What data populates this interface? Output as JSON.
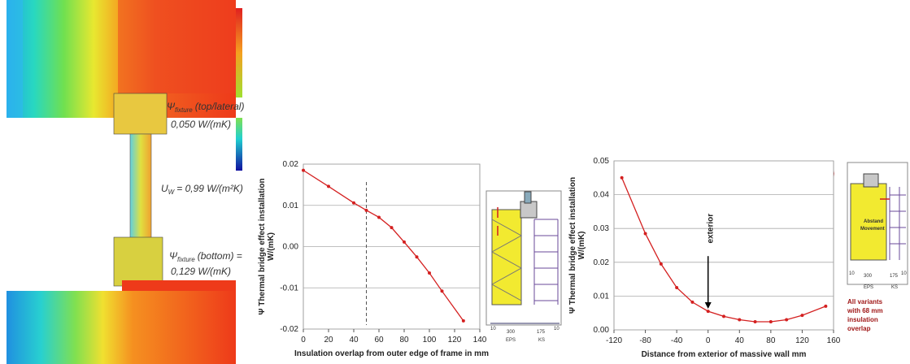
{
  "figure": {
    "left_annotations": {
      "psi_top": {
        "symbol": "Ψ",
        "subscript": "fixture",
        "text": "(top/lateral)"
      },
      "psi_top_value": "0,050 W/(mK)",
      "uw": {
        "symbol": "U",
        "subscript": "W",
        "text": "= 0,99 W/(m²K)"
      },
      "psi_bottom": {
        "symbol": "Ψ",
        "subscript": "fixture",
        "text": "(bottom) ="
      },
      "psi_bottom_value": "0,129  W/(mK)"
    },
    "inset_1": {
      "dims": [
        "10",
        "300",
        "175",
        "10"
      ],
      "materials": [
        "EPS",
        "KS"
      ]
    },
    "inset_2": {
      "labels": [
        "Abstand",
        "Movement"
      ],
      "dims": [
        "10",
        "300",
        "175",
        "10"
      ],
      "materials": [
        "EPS",
        "KS"
      ],
      "note": [
        "All variants",
        "with 68 mm",
        "insulation",
        "overlap"
      ]
    }
  },
  "chart_data": [
    {
      "type": "line",
      "ylabel": [
        "Ψ  Thermal bridge effect installation",
        "W/(mK)"
      ],
      "xlabel": "Insulation overlap from outer edge of frame in mm",
      "x": [
        0,
        20,
        40,
        50,
        60,
        70,
        80,
        90,
        100,
        110,
        127
      ],
      "series": [
        {
          "color": "#d42020",
          "values": [
            0.0185,
            0.0146,
            0.0106,
            0.0088,
            0.0071,
            0.0046,
            0.0011,
            -0.0025,
            -0.0064,
            -0.0108,
            -0.018
          ]
        }
      ],
      "reference_x": 50,
      "xlim": [
        0,
        140
      ],
      "xticks": [
        0,
        20,
        40,
        60,
        80,
        100,
        120,
        140
      ],
      "ylim": [
        -0.02,
        0.02
      ],
      "yticks": [
        -0.02,
        -0.01,
        {
          "value": 0,
          "label": "0.00"
        },
        0.01,
        0.02
      ],
      "grid": true
    },
    {
      "type": "line",
      "ylabel": [
        "Ψ  Thermal bridge effect installation",
        "W/(mK)"
      ],
      "xlabel": "Distance from exterior of massive wall mm",
      "x": [
        -110,
        -80,
        -60,
        -40,
        -20,
        0,
        20,
        40,
        60,
        80,
        100,
        120,
        150
      ],
      "series": [
        {
          "color": "#d42020",
          "values": [
            0.045,
            0.0285,
            0.0195,
            0.0125,
            0.0082,
            0.0055,
            0.004,
            0.003,
            0.0024,
            0.0024,
            0.003,
            0.0043,
            0.007
          ]
        }
      ],
      "annotations": [
        {
          "text": "exterior",
          "x": 0
        }
      ],
      "xlim": [
        -120,
        160
      ],
      "xticks": [
        -120,
        -80,
        -40,
        0,
        40,
        80,
        120,
        160
      ],
      "ylim": [
        0,
        0.05
      ],
      "yticks": [
        {
          "value": 0,
          "label": "0.00"
        },
        0.01,
        0.02,
        0.03,
        0.04,
        0.05
      ],
      "grid": true
    }
  ]
}
